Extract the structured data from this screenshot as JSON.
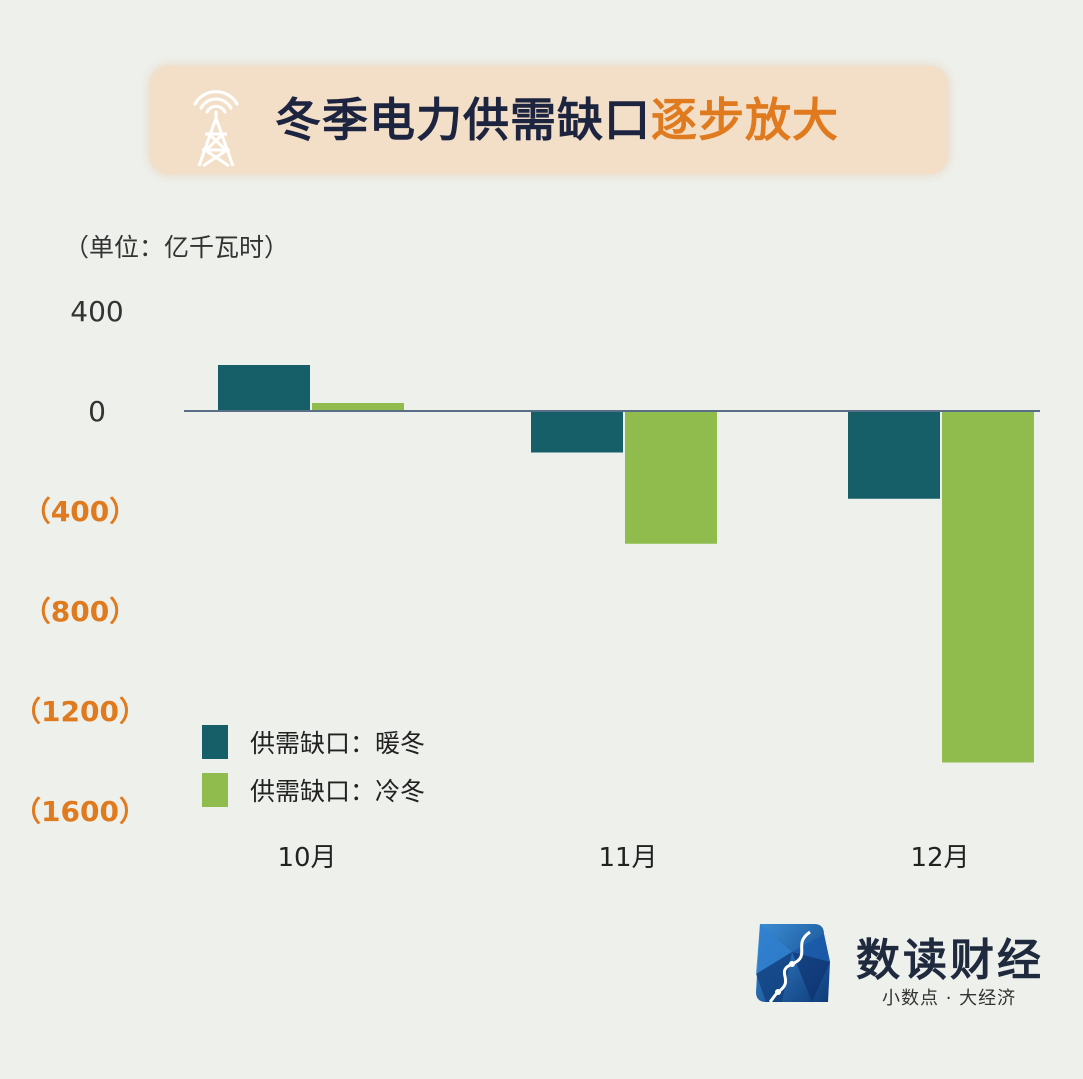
{
  "header": {
    "title_main": "冬季电力供需缺口",
    "title_highlight": "逐步放大"
  },
  "unit_label": "（单位：亿千瓦时）",
  "chart_data": {
    "type": "bar",
    "categories": [
      "10月",
      "11月",
      "12月"
    ],
    "series": [
      {
        "name": "供需缺口：暖冬",
        "color": "#175f68",
        "values": [
          180,
          -170,
          -355
        ]
      },
      {
        "name": "供需缺口：冷冬",
        "color": "#8fbc4c",
        "values": [
          28,
          -535,
          -1410
        ]
      }
    ],
    "yticks": [
      {
        "value": 400,
        "label": "400",
        "color": "#333333"
      },
      {
        "value": 0,
        "label": "0",
        "color": "#333333"
      },
      {
        "value": -400,
        "label": "（400）",
        "color": "#e07a1f"
      },
      {
        "value": -800,
        "label": "（800）",
        "color": "#e07a1f"
      },
      {
        "value": -1200,
        "label": "（1200）",
        "color": "#e07a1f"
      },
      {
        "value": -1600,
        "label": "（1600）",
        "color": "#e07a1f"
      }
    ],
    "ylim": [
      -1600,
      400
    ],
    "grid": false,
    "legend_position": "bottom-left",
    "xlabel": "",
    "ylabel": ""
  },
  "legend": {
    "items": [
      {
        "label": "供需缺口：暖冬",
        "color": "#175f68"
      },
      {
        "label": "供需缺口：冷冬",
        "color": "#8fbc4c"
      }
    ]
  },
  "brand": {
    "name": "数读财经",
    "tagline": "小数点 · 大经济",
    "icon": "river-map-logo"
  },
  "colors": {
    "background": "#eef0ec",
    "banner": "#f3dfc8",
    "accent": "#e07a1f",
    "title": "#1d2440"
  }
}
